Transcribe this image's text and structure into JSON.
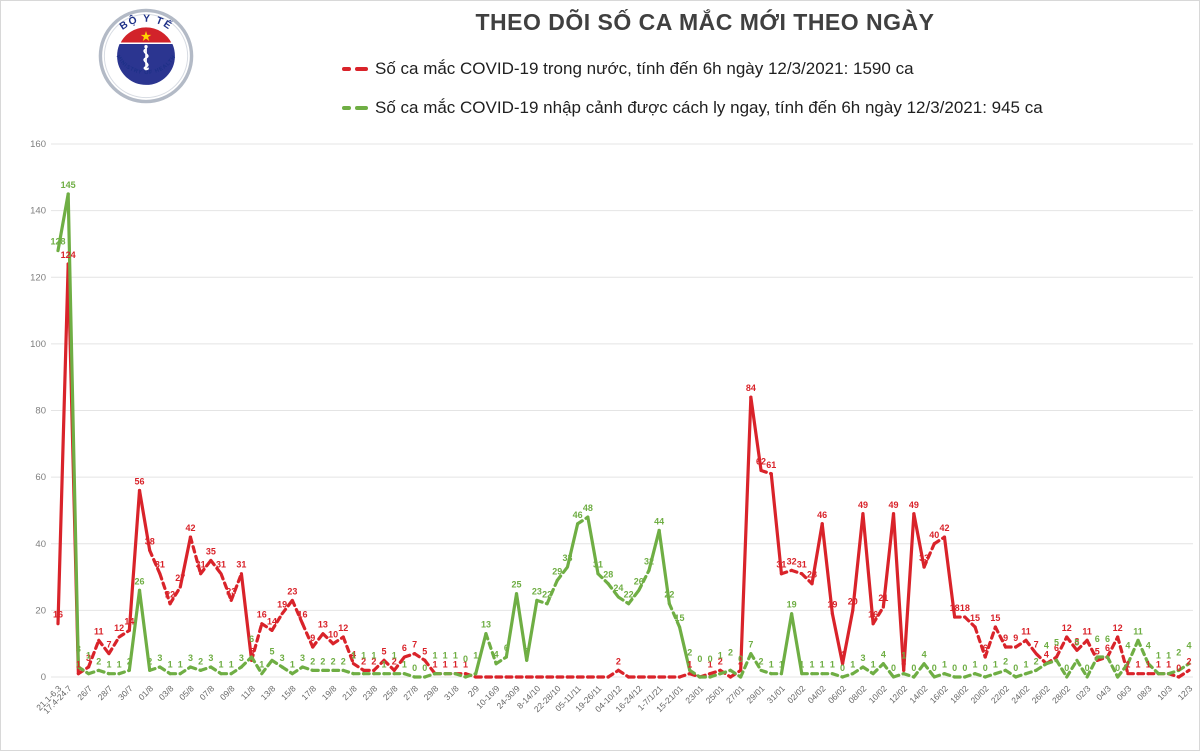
{
  "header": {
    "title": "THEO DÕI SỐ CA MẮC MỚI THEO NGÀY"
  },
  "logo": {
    "top_text": "BỘ Y TẾ",
    "bottom_text": "MINISTRY OF HEALTH"
  },
  "legend": [
    {
      "label": "Số ca mắc COVID-19 trong nước, tính đến 6h ngày 12/3/2021: 1590 ca",
      "color": "#d9232a"
    },
    {
      "label": "Số ca mắc COVID-19 nhập cảnh được cách ly ngay, tính đến 6h ngày 12/3/2021: 945 ca",
      "color": "#6fae44"
    }
  ],
  "chart_data": {
    "type": "line",
    "title": "THEO DÕI SỐ CA MẮC MỚI THEO NGÀY",
    "grid": "horizontal",
    "legend_position": "top",
    "ylim": [
      0,
      160
    ],
    "y_axis": {
      "max": 160,
      "ticks": [
        0,
        20,
        40,
        60,
        80,
        100,
        120,
        140,
        160
      ]
    },
    "slots": 112,
    "x_ticks": [
      {
        "slot": 0,
        "label": "21.1-6.3"
      },
      {
        "slot": 1,
        "label": "17.4-24.7"
      },
      {
        "slot": 3,
        "label": "26/7"
      },
      {
        "slot": 5,
        "label": "28/7"
      },
      {
        "slot": 7,
        "label": "30/7"
      },
      {
        "slot": 9,
        "label": "01/8"
      },
      {
        "slot": 11,
        "label": "03/8"
      },
      {
        "slot": 13,
        "label": "05/8"
      },
      {
        "slot": 15,
        "label": "07/8"
      },
      {
        "slot": 17,
        "label": "09/8"
      },
      {
        "slot": 19,
        "label": "11/8"
      },
      {
        "slot": 21,
        "label": "13/8"
      },
      {
        "slot": 23,
        "label": "15/8"
      },
      {
        "slot": 25,
        "label": "17/8"
      },
      {
        "slot": 27,
        "label": "19/8"
      },
      {
        "slot": 29,
        "label": "21/8"
      },
      {
        "slot": 31,
        "label": "23/8"
      },
      {
        "slot": 33,
        "label": "25/8"
      },
      {
        "slot": 35,
        "label": "27/8"
      },
      {
        "slot": 37,
        "label": "29/8"
      },
      {
        "slot": 39,
        "label": "31/8"
      },
      {
        "slot": 41,
        "label": "2/9"
      },
      {
        "slot": 43,
        "label": "10-16/9"
      },
      {
        "slot": 45,
        "label": "24-30/9"
      },
      {
        "slot": 47,
        "label": "8-14/10"
      },
      {
        "slot": 49,
        "label": "22-28/10"
      },
      {
        "slot": 51,
        "label": "05-11/11"
      },
      {
        "slot": 53,
        "label": "19-26/11"
      },
      {
        "slot": 55,
        "label": "04-10/12"
      },
      {
        "slot": 57,
        "label": "16-24/12"
      },
      {
        "slot": 59,
        "label": "1-7/1/21"
      },
      {
        "slot": 61,
        "label": "15-21/01"
      },
      {
        "slot": 63,
        "label": "23/01"
      },
      {
        "slot": 65,
        "label": "25/01"
      },
      {
        "slot": 67,
        "label": "27/01"
      },
      {
        "slot": 69,
        "label": "29/01"
      },
      {
        "slot": 71,
        "label": "31/01"
      },
      {
        "slot": 73,
        "label": "02/02"
      },
      {
        "slot": 75,
        "label": "04/02"
      },
      {
        "slot": 77,
        "label": "06/02"
      },
      {
        "slot": 79,
        "label": "08/02"
      },
      {
        "slot": 81,
        "label": "10/02"
      },
      {
        "slot": 83,
        "label": "12/02"
      },
      {
        "slot": 85,
        "label": "14/02"
      },
      {
        "slot": 87,
        "label": "16/02"
      },
      {
        "slot": 89,
        "label": "18/02"
      },
      {
        "slot": 91,
        "label": "20/02"
      },
      {
        "slot": 93,
        "label": "22/02"
      },
      {
        "slot": 95,
        "label": "24/02"
      },
      {
        "slot": 97,
        "label": "26/02"
      },
      {
        "slot": 99,
        "label": "28/02"
      },
      {
        "slot": 101,
        "label": "02/3"
      },
      {
        "slot": 103,
        "label": "04/3"
      },
      {
        "slot": 105,
        "label": "06/3"
      },
      {
        "slot": 107,
        "label": "08/3"
      },
      {
        "slot": 109,
        "label": "10/3"
      },
      {
        "slot": 111,
        "label": "12/3"
      }
    ],
    "series": [
      {
        "name": "Số ca mắc COVID-19 trong nước",
        "color": "#d9232a",
        "hide_zero_labels_between": [
          39,
          99
        ],
        "values": [
          16,
          124,
          1,
          3,
          11,
          7,
          12,
          14,
          56,
          38,
          31,
          22,
          27,
          42,
          31,
          35,
          31,
          23,
          31,
          5,
          16,
          14,
          19,
          23,
          16,
          9,
          13,
          10,
          12,
          4,
          2,
          2,
          5,
          2,
          6,
          7,
          5,
          1,
          1,
          1,
          1,
          0,
          0,
          0,
          0,
          0,
          0,
          0,
          0,
          0,
          0,
          0,
          0,
          0,
          0,
          2,
          0,
          0,
          0,
          0,
          0,
          0,
          1,
          0,
          1,
          2,
          0,
          2,
          84,
          62,
          61,
          31,
          32,
          31,
          28,
          46,
          19,
          4,
          20,
          49,
          16,
          21,
          49,
          2,
          49,
          33,
          40,
          42,
          18,
          18,
          15,
          6,
          15,
          9,
          9,
          11,
          7,
          4,
          6,
          12,
          8,
          11,
          5,
          6,
          12,
          1,
          1,
          1,
          1,
          1,
          0,
          2
        ]
      },
      {
        "name": "Số ca mắc COVID-19 nhập cảnh được cách ly ngay",
        "color": "#6fae44",
        "values": [
          128,
          145,
          3,
          1,
          2,
          1,
          1,
          2,
          26,
          2,
          3,
          1,
          1,
          3,
          2,
          3,
          1,
          1,
          3,
          6,
          1,
          5,
          3,
          1,
          3,
          2,
          2,
          2,
          2,
          1,
          1,
          1,
          1,
          1,
          1,
          0,
          0,
          1,
          1,
          1,
          0,
          1,
          13,
          4,
          6,
          25,
          5,
          23,
          22,
          29,
          33,
          46,
          48,
          31,
          28,
          24,
          22,
          26,
          32,
          44,
          22,
          15,
          2,
          0,
          0,
          1,
          2,
          0,
          7,
          2,
          1,
          1,
          19,
          1,
          1,
          1,
          1,
          0,
          1,
          3,
          1,
          4,
          0,
          1,
          0,
          4,
          0,
          1,
          0,
          0,
          1,
          0,
          1,
          2,
          0,
          1,
          2,
          4,
          5,
          0,
          5,
          0,
          6,
          6,
          0,
          4,
          11,
          4,
          1,
          1,
          2,
          4
        ]
      }
    ]
  }
}
